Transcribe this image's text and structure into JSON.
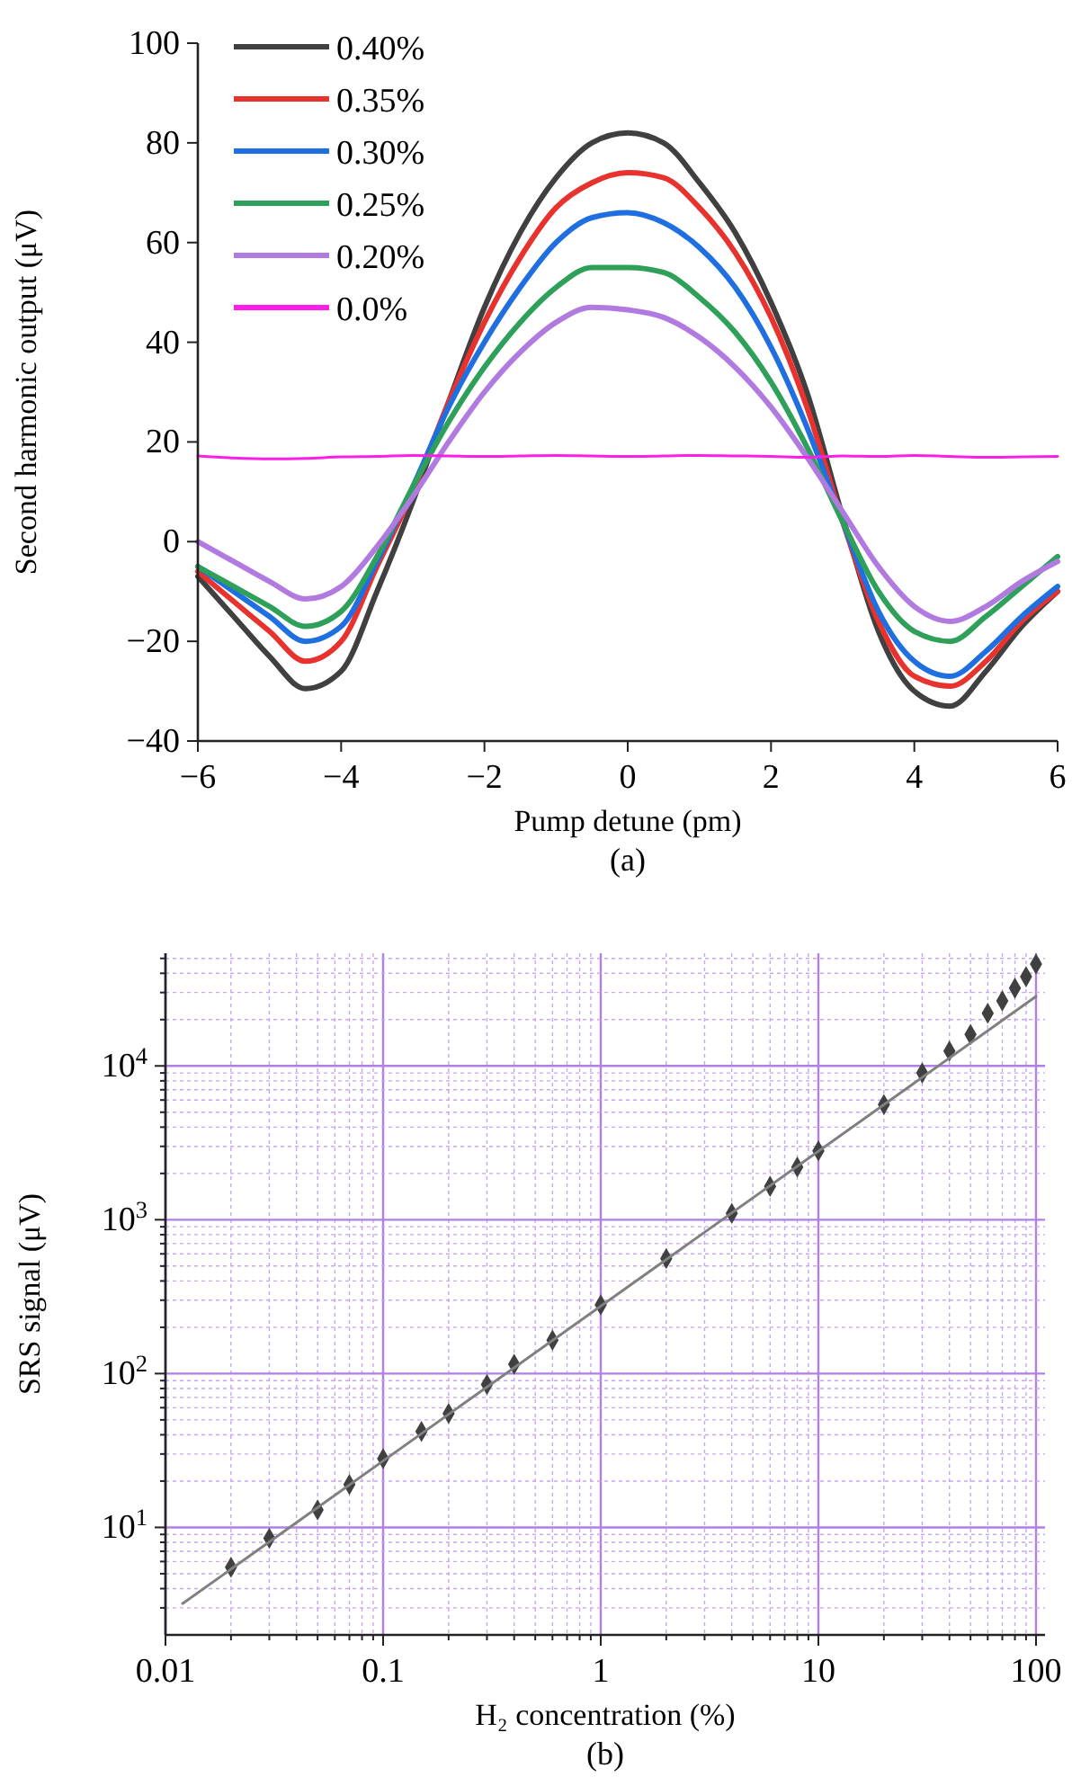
{
  "chart_data": [
    {
      "type": "line",
      "xlabel": "Pump detune (pm)",
      "ylabel": "Second harmonic output (μV)",
      "annotations": [
        "(a)"
      ],
      "xlim": [
        -6,
        6
      ],
      "xticks": [
        {
          "value": -6,
          "label": "−6"
        },
        {
          "value": -4,
          "label": "−4"
        },
        {
          "value": -2,
          "label": "−2"
        },
        0,
        2,
        4,
        6
      ],
      "ylim": [
        -40,
        100
      ],
      "yticks": [
        {
          "value": -40,
          "label": "−40"
        },
        {
          "value": -20,
          "label": "−20"
        },
        0,
        20,
        40,
        60,
        80,
        100
      ],
      "legend": "top left",
      "grid": false,
      "line_style": "solid",
      "x": [
        -6,
        -5.5,
        -5,
        -4.5,
        -4,
        -3.5,
        -3,
        -2.5,
        -2,
        -1.5,
        -1,
        -0.5,
        0,
        0.5,
        1,
        1.5,
        2,
        2.5,
        3,
        3.5,
        4,
        4.5,
        5,
        5.5,
        6
      ],
      "series": [
        {
          "name": "0.40%",
          "color": "#404040",
          "values": [
            -7,
            -15,
            -23,
            -29.5,
            -26,
            -10,
            8,
            28,
            47,
            62,
            73,
            80,
            82,
            80,
            72,
            62,
            48,
            30,
            5,
            -18,
            -30,
            -33,
            -26,
            -17,
            -10
          ]
        },
        {
          "name": "0.35%",
          "color": "#e8322d",
          "values": [
            -6,
            -12,
            -18,
            -24,
            -20,
            -5,
            10,
            28,
            44,
            57,
            67,
            72,
            74,
            73,
            67,
            58,
            45,
            27,
            4,
            -16,
            -27,
            -29,
            -24,
            -16,
            -10
          ]
        },
        {
          "name": "0.30%",
          "color": "#1f6fe0",
          "values": [
            -5,
            -10,
            -15,
            -20,
            -17,
            -4,
            11,
            27,
            40,
            51,
            60,
            65,
            66,
            64,
            59,
            51,
            39,
            23,
            4,
            -14,
            -24,
            -27,
            -22,
            -15,
            -9
          ]
        },
        {
          "name": "0.25%",
          "color": "#2ea05a",
          "values": [
            -5,
            -9,
            -13,
            -17,
            -14,
            -3,
            11,
            24,
            35,
            44,
            51,
            55,
            55,
            54,
            49,
            42,
            32,
            19,
            4,
            -10,
            -18,
            -20,
            -15,
            -9,
            -3
          ]
        },
        {
          "name": "0.20%",
          "color": "#b07ae0",
          "values": [
            0,
            -4,
            -8,
            -11.5,
            -9,
            -1,
            9,
            20,
            30,
            38,
            44,
            47,
            46.5,
            45,
            41,
            35,
            27,
            17,
            6,
            -5,
            -13,
            -16,
            -13,
            -8,
            -4
          ]
        },
        {
          "name": "0.0%",
          "color": "#ff1ee8",
          "values": [
            17.2,
            16.8,
            16.6,
            16.7,
            17,
            17.1,
            17.3,
            17.2,
            17.1,
            17.2,
            17.3,
            17.2,
            17.1,
            17.2,
            17.3,
            17.2,
            17.1,
            16.9,
            17.2,
            17.1,
            17.3,
            17.1,
            16.9,
            17,
            17.1
          ]
        }
      ]
    },
    {
      "type": "scatter",
      "xlabel": "H₂ concentration (%)",
      "ylabel": "SRS signal (μV)",
      "annotations": [
        "(b)"
      ],
      "log": "xy",
      "xlim": [
        0.01,
        110
      ],
      "xticks": [
        0.01,
        {
          "value": 0.02,
          "label": null
        },
        {
          "value": 0.03,
          "label": null
        },
        {
          "value": 0.04,
          "label": null
        },
        {
          "value": 0.05,
          "label": null
        },
        {
          "value": 0.06,
          "label": null
        },
        {
          "value": 0.07,
          "label": null
        },
        {
          "value": 0.08,
          "label": null
        },
        {
          "value": 0.09,
          "label": null
        },
        0.1,
        {
          "value": 0.2,
          "label": null
        },
        {
          "value": 0.3,
          "label": null
        },
        {
          "value": 0.4,
          "label": null
        },
        {
          "value": 0.5,
          "label": null
        },
        {
          "value": 0.6,
          "label": null
        },
        {
          "value": 0.7,
          "label": null
        },
        {
          "value": 0.8,
          "label": null
        },
        {
          "value": 0.9,
          "label": null
        },
        1,
        {
          "value": 2,
          "label": null
        },
        {
          "value": 3,
          "label": null
        },
        {
          "value": 4,
          "label": null
        },
        {
          "value": 5,
          "label": null
        },
        {
          "value": 6,
          "label": null
        },
        {
          "value": 7,
          "label": null
        },
        {
          "value": 8,
          "label": null
        },
        {
          "value": 9,
          "label": null
        },
        10,
        {
          "value": 20,
          "label": null
        },
        {
          "value": 30,
          "label": null
        },
        {
          "value": 40,
          "label": null
        },
        {
          "value": 50,
          "label": null
        },
        {
          "value": 60,
          "label": null
        },
        {
          "value": 70,
          "label": null
        },
        {
          "value": 80,
          "label": null
        },
        {
          "value": 90,
          "label": null
        },
        100
      ],
      "ylim": [
        2,
        54000
      ],
      "yticks": [
        {
          "value": 3,
          "label": null
        },
        {
          "value": 4,
          "label": null
        },
        {
          "value": 5,
          "label": null
        },
        {
          "value": 6,
          "label": null
        },
        {
          "value": 7,
          "label": null
        },
        {
          "value": 8,
          "label": null
        },
        {
          "value": 9,
          "label": null
        },
        {
          "value": 10,
          "label": "10$^{1}$"
        },
        {
          "value": 20,
          "label": null
        },
        {
          "value": 30,
          "label": null
        },
        {
          "value": 40,
          "label": null
        },
        {
          "value": 50,
          "label": null
        },
        {
          "value": 60,
          "label": null
        },
        {
          "value": 70,
          "label": null
        },
        {
          "value": 80,
          "label": null
        },
        {
          "value": 90,
          "label": null
        },
        {
          "value": 100,
          "label": "10$^{2}$"
        },
        {
          "value": 200,
          "label": null
        },
        {
          "value": 300,
          "label": null
        },
        {
          "value": 400,
          "label": null
        },
        {
          "value": 500,
          "label": null
        },
        {
          "value": 600,
          "label": null
        },
        {
          "value": 700,
          "label": null
        },
        {
          "value": 800,
          "label": null
        },
        {
          "value": 900,
          "label": null
        },
        {
          "value": 1000,
          "label": "10$^{3}$"
        },
        {
          "value": 2000,
          "label": null
        },
        {
          "value": 3000,
          "label": null
        },
        {
          "value": 4000,
          "label": null
        },
        {
          "value": 5000,
          "label": null
        },
        {
          "value": 6000,
          "label": null
        },
        {
          "value": 7000,
          "label": null
        },
        {
          "value": 8000,
          "label": null
        },
        {
          "value": 9000,
          "label": null
        },
        {
          "value": 10000,
          "label": "10$^{4}$"
        },
        {
          "value": 20000,
          "label": null
        },
        {
          "value": 30000,
          "label": null
        },
        {
          "value": 40000,
          "label": null
        },
        {
          "value": 50000,
          "label": null
        }
      ],
      "grid": true,
      "legend": false,
      "series": [
        {
          "type": "scatter",
          "marker": "diamond",
          "color": "#404040",
          "x": [
            0.02,
            0.03,
            0.05,
            0.07,
            0.1,
            0.15,
            0.2,
            0.3,
            0.4,
            0.6,
            1,
            2,
            4,
            6,
            8,
            10,
            20,
            30,
            40,
            50,
            60,
            70,
            80,
            90,
            100
          ],
          "values": [
            5.5,
            8.5,
            13,
            19,
            28,
            42,
            55,
            85,
            115,
            165,
            280,
            560,
            1100,
            1650,
            2200,
            2800,
            5600,
            9000,
            12500,
            16000,
            22000,
            26500,
            32000,
            38000,
            46000
          ]
        },
        {
          "type": "line",
          "marker": "none",
          "color": "#808080",
          "x": [
            0.012,
            100
          ],
          "values": [
            3.2,
            28300
          ]
        }
      ]
    }
  ]
}
